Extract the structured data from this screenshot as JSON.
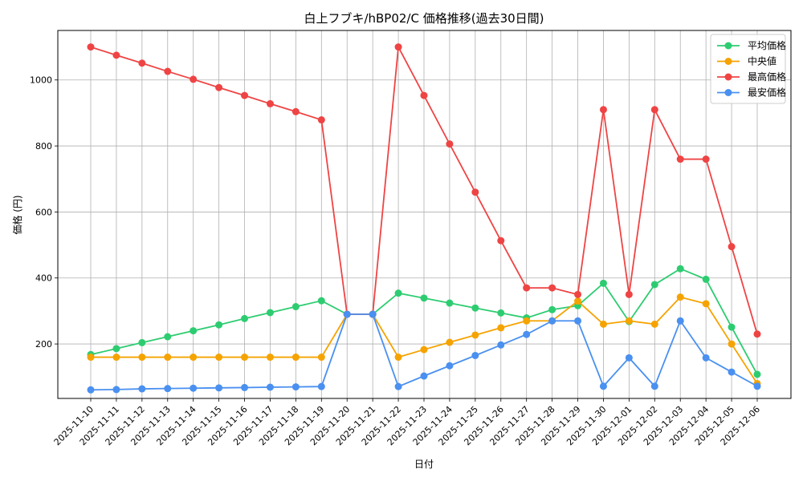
{
  "chart_data": {
    "type": "line",
    "title": "白上フブキ/hBP02/C 価格推移(過去30日間)",
    "xlabel": "日付",
    "ylabel": "価格 (円)",
    "ylim": [
      35,
      1150
    ],
    "yticks": [
      200,
      400,
      600,
      800,
      1000
    ],
    "grid": true,
    "legend_position": "top-right",
    "categories": [
      "2025-11-10",
      "2025-11-11",
      "2025-11-12",
      "2025-11-13",
      "2025-11-14",
      "2025-11-15",
      "2025-11-16",
      "2025-11-17",
      "2025-11-18",
      "2025-11-19",
      "2025-11-20",
      "2025-11-21",
      "2025-11-22",
      "2025-11-23",
      "2025-11-24",
      "2025-11-25",
      "2025-11-26",
      "2025-11-27",
      "2025-11-28",
      "2025-11-29",
      "2025-11-30",
      "2025-12-01",
      "2025-12-02",
      "2025-12-03",
      "2025-12-04",
      "2025-12-05",
      "2025-12-06"
    ],
    "series": [
      {
        "name": "平均価格",
        "color": "#2ecc71",
        "values": [
          168,
          186,
          204,
          222,
          240,
          258,
          277,
          295,
          313,
          331,
          290,
          290,
          354,
          339,
          324,
          309,
          294,
          279,
          304,
          316,
          384,
          268,
          380,
          428,
          396,
          251,
          108
        ]
      },
      {
        "name": "中央値",
        "color": "#f5a300",
        "values": [
          160,
          160,
          160,
          160,
          160,
          160,
          160,
          160,
          160,
          160,
          290,
          290,
          160,
          183,
          205,
          227,
          249,
          270,
          270,
          330,
          260,
          270,
          260,
          342,
          322,
          200,
          80
        ]
      },
      {
        "name": "最高価格",
        "color": "#ef4444",
        "values": [
          1100,
          1075,
          1051,
          1026,
          1002,
          977,
          953,
          928,
          904,
          879,
          290,
          290,
          1100,
          953,
          806,
          660,
          513,
          370,
          370,
          350,
          910,
          350,
          910,
          760,
          760,
          495,
          230
        ]
      },
      {
        "name": "最安価格",
        "color": "#4a90f0",
        "values": [
          61,
          62,
          64,
          65,
          66,
          67,
          68,
          69,
          70,
          71,
          290,
          290,
          71,
          103,
          134,
          165,
          197,
          229,
          270,
          270,
          72,
          158,
          72,
          270,
          158,
          115,
          72
        ]
      }
    ]
  }
}
